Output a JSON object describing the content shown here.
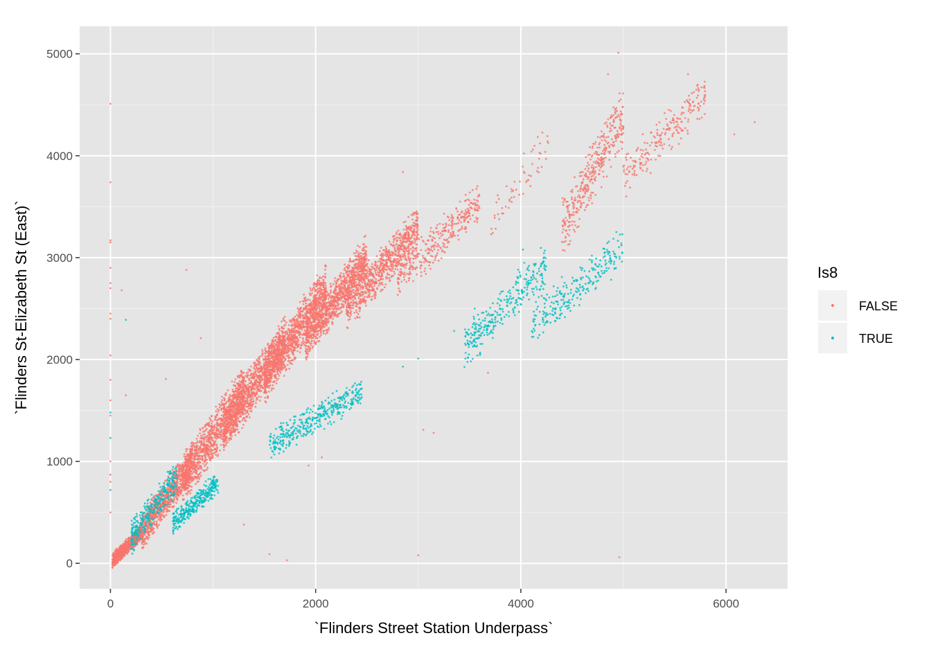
{
  "chart_data": {
    "type": "scatter",
    "title": "",
    "xlabel": "`Flinders Street Station Underpass`",
    "ylabel": "`Flinders St-Elizabeth St (East)`",
    "xlim": [
      -300,
      6600
    ],
    "ylim": [
      -250,
      5270
    ],
    "x_ticks": [
      0,
      2000,
      4000,
      6000
    ],
    "y_ticks": [
      0,
      1000,
      2000,
      3000,
      4000,
      5000
    ],
    "x_tick_labels": [
      "0",
      "2000",
      "4000",
      "6000"
    ],
    "y_tick_labels": [
      "0",
      "1000",
      "2000",
      "3000",
      "4000",
      "5000"
    ],
    "grid": true,
    "background": "#e5e5e5",
    "legend": {
      "title": "Is8",
      "position": "right",
      "entries": [
        {
          "label": "FALSE",
          "color": "#f8766d"
        },
        {
          "label": "TRUE",
          "color": "#00bfc4"
        }
      ]
    },
    "series": [
      {
        "name": "FALSE",
        "color": "#f8766d",
        "clusters": [
          {
            "x": [
              20,
              300
            ],
            "y": [
              30,
              300
            ],
            "n": 900
          },
          {
            "x": [
              300,
              800
            ],
            "y": [
              300,
              1000
            ],
            "n": 900
          },
          {
            "x": [
              700,
              1300
            ],
            "y": [
              800,
              1700
            ],
            "n": 1000
          },
          {
            "x": [
              1100,
              1700
            ],
            "y": [
              1300,
              2200
            ],
            "n": 1100
          },
          {
            "x": [
              1500,
              2100
            ],
            "y": [
              1800,
              2700
            ],
            "n": 1100
          },
          {
            "x": [
              1900,
              2500
            ],
            "y": [
              2200,
              3000
            ],
            "n": 1000
          },
          {
            "x": [
              2300,
              3000
            ],
            "y": [
              2500,
              3300
            ],
            "n": 800
          },
          {
            "x": [
              2800,
              3600
            ],
            "y": [
              2800,
              3550
            ],
            "n": 350
          },
          {
            "x": [
              3700,
              4300
            ],
            "y": [
              3300,
              4200
            ],
            "n": 60
          },
          {
            "x": [
              4400,
              5000
            ],
            "y": [
              3300,
              4400
            ],
            "n": 380
          },
          {
            "x": [
              5000,
              5800
            ],
            "y": [
              3800,
              4600
            ],
            "n": 220
          }
        ],
        "outliers": [
          {
            "x": 0,
            "y": 4510
          },
          {
            "x": 0,
            "y": 3740
          },
          {
            "x": 0,
            "y": 3170
          },
          {
            "x": 0,
            "y": 3150
          },
          {
            "x": 0,
            "y": 2900
          },
          {
            "x": 0,
            "y": 2750
          },
          {
            "x": 0,
            "y": 2700
          },
          {
            "x": 0,
            "y": 2450
          },
          {
            "x": 0,
            "y": 2400
          },
          {
            "x": 0,
            "y": 2040
          },
          {
            "x": 0,
            "y": 1800
          },
          {
            "x": 0,
            "y": 1600
          },
          {
            "x": 0,
            "y": 1450
          },
          {
            "x": 0,
            "y": 1000
          },
          {
            "x": 0,
            "y": 870
          },
          {
            "x": 0,
            "y": 800
          },
          {
            "x": 0,
            "y": 500
          },
          {
            "x": 110,
            "y": 2680
          },
          {
            "x": 150,
            "y": 1650
          },
          {
            "x": 540,
            "y": 1810
          },
          {
            "x": 740,
            "y": 2880
          },
          {
            "x": 880,
            "y": 2210
          },
          {
            "x": 3000,
            "y": 80
          },
          {
            "x": 3150,
            "y": 1280
          },
          {
            "x": 3050,
            "y": 1310
          },
          {
            "x": 4960,
            "y": 60
          },
          {
            "x": 4950,
            "y": 5010
          },
          {
            "x": 4850,
            "y": 4800
          },
          {
            "x": 5630,
            "y": 4800
          },
          {
            "x": 6280,
            "y": 4330
          },
          {
            "x": 6080,
            "y": 4210
          },
          {
            "x": 2850,
            "y": 3840
          },
          {
            "x": 1300,
            "y": 380
          },
          {
            "x": 1550,
            "y": 90
          },
          {
            "x": 1720,
            "y": 30
          },
          {
            "x": 1930,
            "y": 960
          },
          {
            "x": 2060,
            "y": 1040
          },
          {
            "x": 3680,
            "y": 1870
          }
        ]
      },
      {
        "name": "TRUE",
        "color": "#00bfc4",
        "clusters": [
          {
            "x": [
              200,
              650
            ],
            "y": [
              250,
              850
            ],
            "n": 300
          },
          {
            "x": [
              600,
              1050
            ],
            "y": [
              380,
              800
            ],
            "n": 320
          },
          {
            "x": [
              1550,
              2450
            ],
            "y": [
              1150,
              1700
            ],
            "n": 380
          },
          {
            "x": [
              3450,
              4250
            ],
            "y": [
              2100,
              2950
            ],
            "n": 300
          },
          {
            "x": [
              4100,
              5000
            ],
            "y": [
              2350,
              3100
            ],
            "n": 250
          }
        ],
        "outliers": [
          {
            "x": 0,
            "y": 1230
          },
          {
            "x": 0,
            "y": 1480
          },
          {
            "x": 0,
            "y": 720
          },
          {
            "x": 150,
            "y": 2390
          },
          {
            "x": 2850,
            "y": 1930
          },
          {
            "x": 3000,
            "y": 2010
          },
          {
            "x": 3350,
            "y": 2280
          },
          {
            "x": 3550,
            "y": 2500
          },
          {
            "x": 4020,
            "y": 3080
          }
        ]
      }
    ]
  }
}
